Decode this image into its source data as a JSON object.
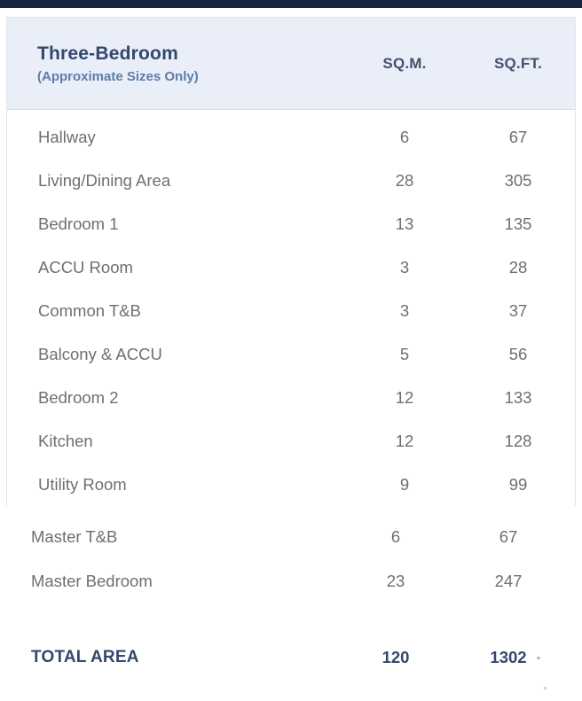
{
  "colors": {
    "top_bar": "#17253F",
    "header_bg": "#E9EEF8",
    "title": "#33486B",
    "subtitle": "#5E7DA6",
    "column_header": "#44516C",
    "row_text": "#6F6F6F",
    "total_text": "#33486B",
    "card_border": "#E3E4E9"
  },
  "table": {
    "title": "Three-Bedroom",
    "subtitle": "(Approximate Sizes Only)",
    "columns": [
      "SQ.M.",
      "SQ.FT."
    ],
    "rows_in_card": [
      {
        "label": "Hallway",
        "sqm": "6",
        "sqft": "67"
      },
      {
        "label": "Living/Dining Area",
        "sqm": "28",
        "sqft": "305"
      },
      {
        "label": "Bedroom 1",
        "sqm": "13",
        "sqft": "135"
      },
      {
        "label": "ACCU Room",
        "sqm": "3",
        "sqft": "28"
      },
      {
        "label": "Common T&B",
        "sqm": "3",
        "sqft": "37"
      },
      {
        "label": "Balcony & ACCU",
        "sqm": "5",
        "sqft": "56"
      },
      {
        "label": "Bedroom 2",
        "sqm": "12",
        "sqft": "133"
      },
      {
        "label": "Kitchen",
        "sqm": "12",
        "sqft": "128"
      },
      {
        "label": "Utility Room",
        "sqm": "9",
        "sqft": "99"
      }
    ],
    "rows_below_card": [
      {
        "label": "Master T&B",
        "sqm": "6",
        "sqft": "67"
      },
      {
        "label": "Master Bedroom",
        "sqm": "23",
        "sqft": "247"
      }
    ],
    "total": {
      "label": "TOTAL AREA",
      "sqm": "120",
      "sqft": "1302"
    }
  }
}
